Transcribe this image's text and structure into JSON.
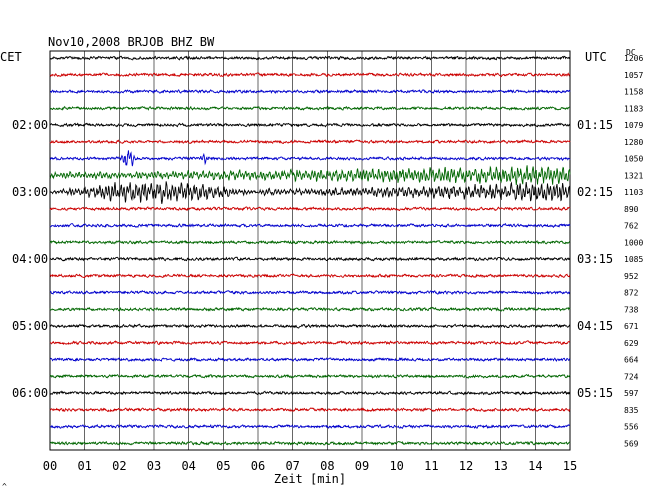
{
  "chart_data": {
    "type": "line",
    "title": "Nov10,2008   BRJOB BHZ BW",
    "left_axis_label": "CET",
    "right_axis_label": "UTC",
    "dc_label": "DC",
    "xlabel": "Zeit [min]",
    "xlim": [
      0,
      15
    ],
    "x_ticks": [
      "00",
      "01",
      "02",
      "03",
      "04",
      "05",
      "06",
      "07",
      "08",
      "09",
      "10",
      "11",
      "12",
      "13",
      "14",
      "15"
    ],
    "left_time_labels": [
      {
        "row": 4,
        "label": "02:00"
      },
      {
        "row": 8,
        "label": "03:00"
      },
      {
        "row": 12,
        "label": "04:00"
      },
      {
        "row": 16,
        "label": "05:00"
      },
      {
        "row": 20,
        "label": "06:00"
      }
    ],
    "right_time_labels": [
      {
        "row": 4,
        "label": "01:15"
      },
      {
        "row": 8,
        "label": "02:15"
      },
      {
        "row": 12,
        "label": "03:15"
      },
      {
        "row": 16,
        "label": "04:15"
      },
      {
        "row": 20,
        "label": "05:15"
      }
    ],
    "dc_values": [
      "1206",
      "1057",
      "1158",
      "1183",
      "1079",
      "1280",
      "1050",
      "1321",
      "1103",
      "890",
      "762",
      "1000",
      "1085",
      "952",
      "872",
      "738",
      "671",
      "629",
      "664",
      "724",
      "597",
      "835",
      "556",
      "569"
    ],
    "trace_colors": [
      "#000000",
      "#cc0000",
      "#0000cc",
      "#006600"
    ],
    "events": [
      {
        "row": 6,
        "minute_start": 2.0,
        "minute_end": 2.5,
        "amplitude": "large",
        "color": "#0000cc"
      },
      {
        "row": 6,
        "minute_start": 4.3,
        "minute_end": 4.6,
        "amplitude": "medium",
        "color": "#0000cc"
      },
      {
        "row": 7,
        "minute_start": 0.0,
        "minute_end": 15.0,
        "amplitude": "growing",
        "color": "#006600"
      },
      {
        "row": 8,
        "minute_start": 0.0,
        "minute_end": 6.0,
        "amplitude": "large",
        "color": "#000000"
      },
      {
        "row": 8,
        "minute_start": 6.0,
        "minute_end": 15.0,
        "amplitude": "growing",
        "color": "#000000"
      }
    ]
  },
  "footer_mark": "^"
}
